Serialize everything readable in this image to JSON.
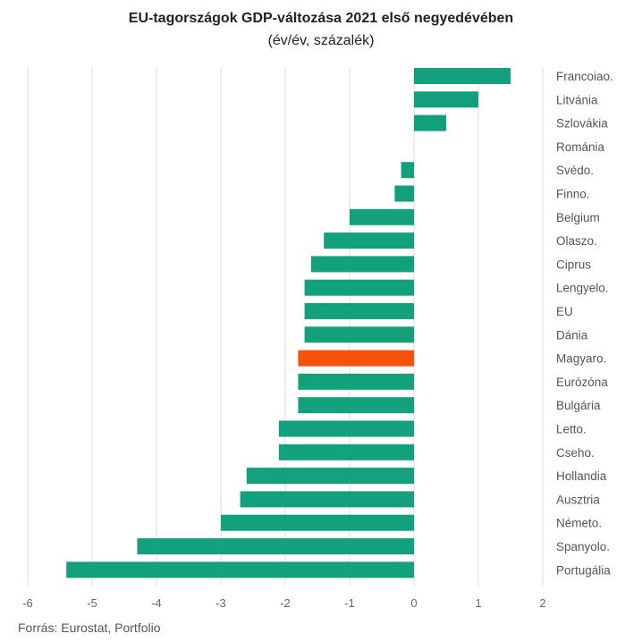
{
  "chart_data": {
    "type": "bar",
    "orientation": "horizontal",
    "title": "EU-tagországok GDP-változása 2021 első negyedévében",
    "subtitle": "(év/év, százalék)",
    "source": "Forrás: Eurostat, Portfolio",
    "categories": [
      "Francoiao.",
      "Litvánia",
      "Szlovákia",
      "Románia",
      "Svédo.",
      "Finno.",
      "Belgium",
      "Olaszo.",
      "Ciprus",
      "Lengyelo.",
      "EU",
      "Dánia",
      "Magyaro.",
      "Eurózóna",
      "Bulgária",
      "Letto.",
      "Cseho.",
      "Hollandia",
      "Ausztria",
      "Németo.",
      "Spanyolo.",
      "Portugália"
    ],
    "values": [
      1.5,
      1.0,
      0.5,
      0.0,
      -0.2,
      -0.3,
      -1.0,
      -1.4,
      -1.6,
      -1.7,
      -1.7,
      -1.7,
      -1.8,
      -1.8,
      -1.8,
      -2.1,
      -2.1,
      -2.6,
      -2.7,
      -3.0,
      -4.3,
      -5.4
    ],
    "highlight": "Magyaro.",
    "colors": {
      "default": "#12a17c",
      "highlight": "#f4520d",
      "grid": "#dddddd"
    },
    "xlim": [
      -6,
      2
    ],
    "xticks": [
      -6,
      -5,
      -4,
      -3,
      -2,
      -1,
      0,
      1,
      2
    ],
    "grid": true,
    "legend": "none"
  }
}
